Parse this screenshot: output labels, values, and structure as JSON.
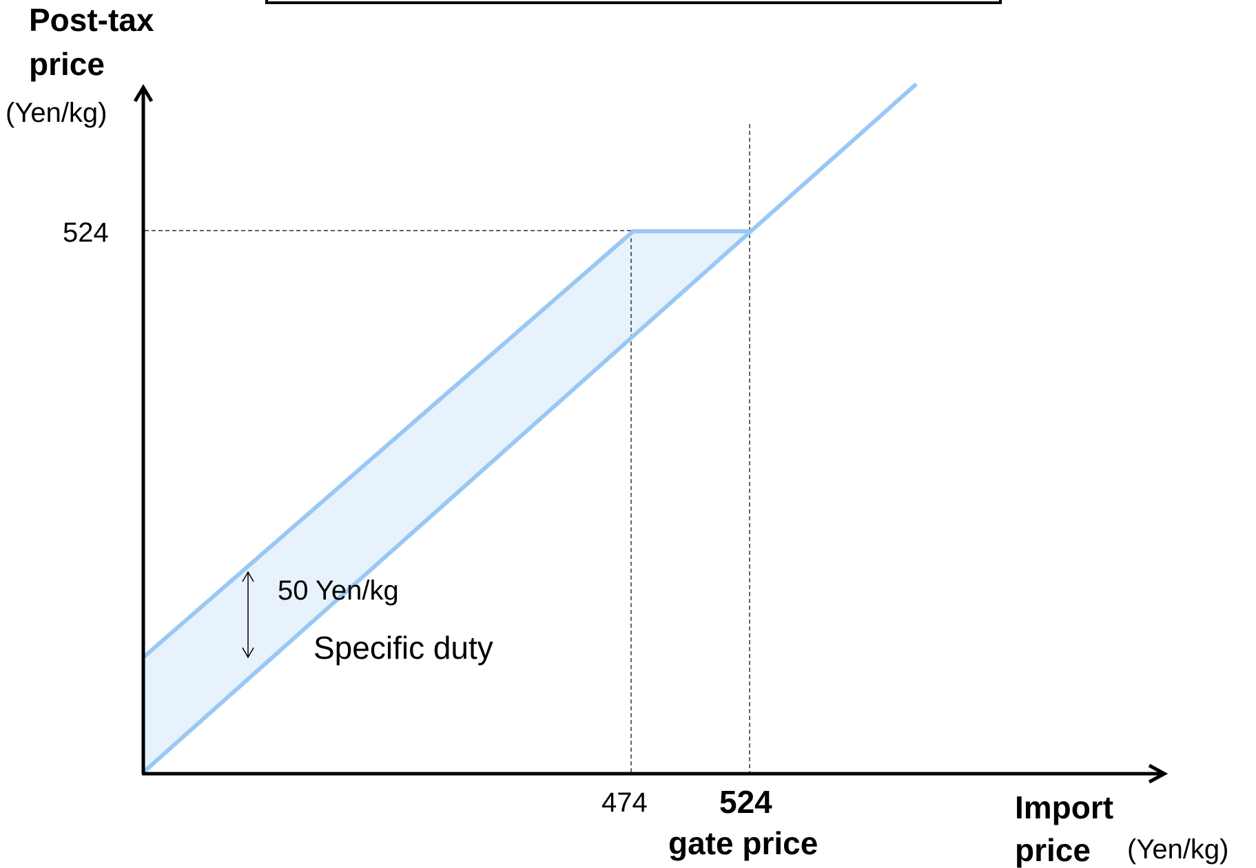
{
  "diagram": {
    "y_axis_title_line1": "Post-tax",
    "y_axis_title_line2": "price",
    "y_axis_unit": "(Yen/kg)",
    "y_tick_524": "524",
    "x_tick_474": "474",
    "x_tick_524": "524",
    "gate_price_label": "gate price",
    "x_axis_title_line1": "Import",
    "x_axis_title_line2": "price",
    "x_axis_unit": "(Yen/kg)",
    "duty_amount_label": "50 Yen/kg",
    "duty_type_label": "Specific duty",
    "colors": {
      "line": "#99c8f5",
      "band_fill": "#e8f2fc",
      "axis": "#000000",
      "guide": "#000000"
    }
  }
}
